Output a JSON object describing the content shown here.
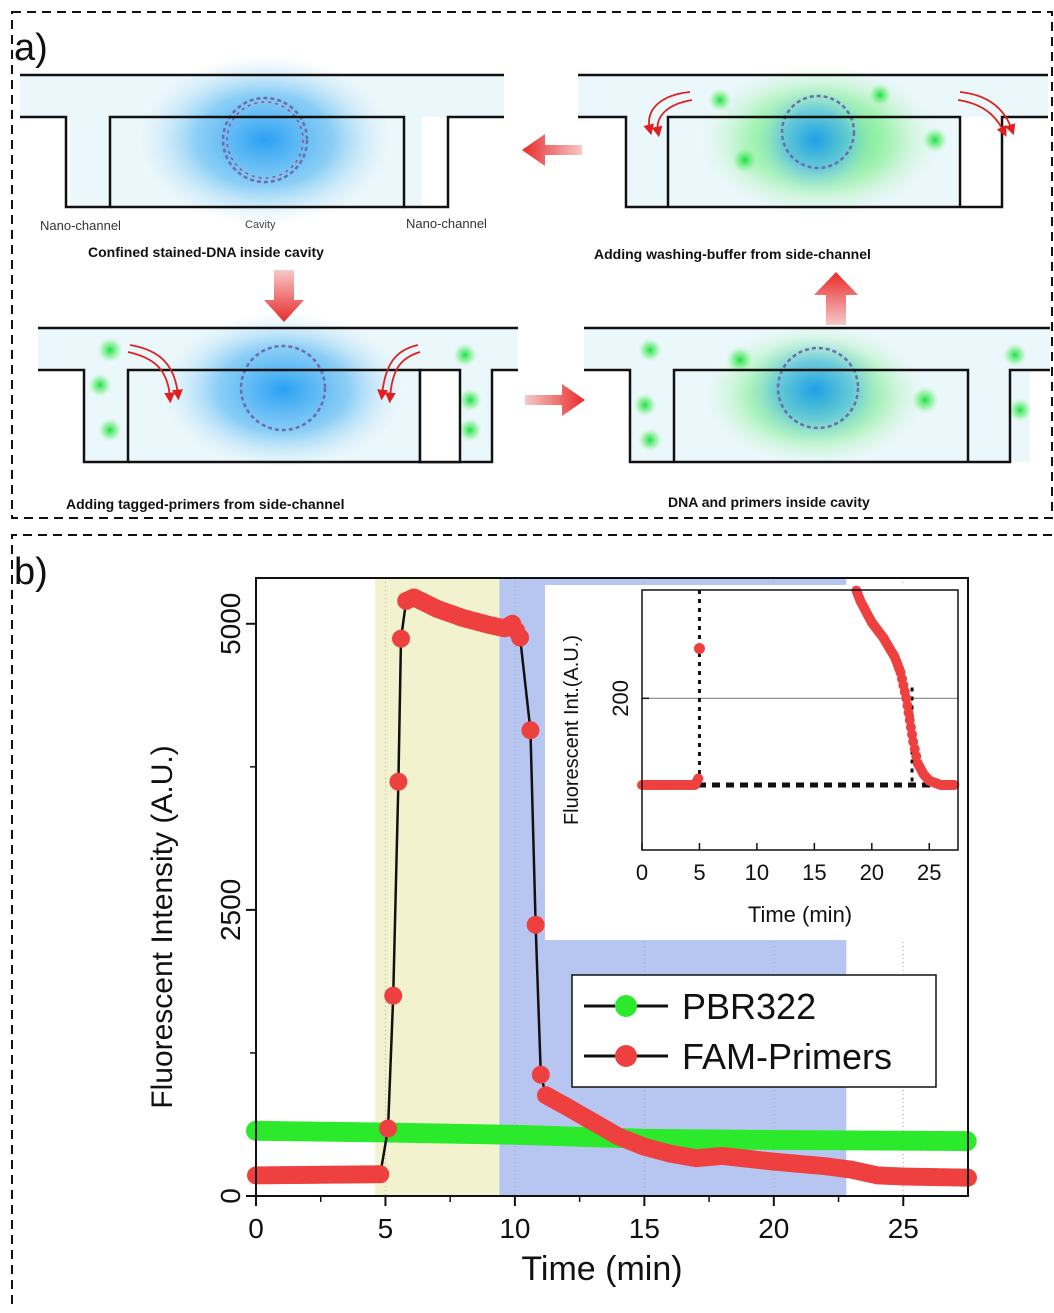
{
  "panel_a": {
    "label": "a)",
    "labels": {
      "nano_left": "Nano-channel",
      "cavity": "Cavity",
      "nano_right": "Nano-channel"
    },
    "captions": {
      "step1": "Confined  stained-DNA inside cavity",
      "step2": "Adding tagged-primers  from side-channel",
      "step3": "DNA and primers inside cavity",
      "step4": "Adding washing-buffer from side-channel"
    },
    "colors": {
      "dna_glow": "#1e9bf0",
      "primer_glow": "#22d64a",
      "arrow": "#e83030",
      "channel_fill": "#eaf7fb"
    }
  },
  "panel_b": {
    "label": "b)",
    "colors": {
      "loading_band": "#f2f2cf",
      "washing_band": "#b7c6f0",
      "pbr322": "#2bea2b",
      "fam": "#ef4040"
    },
    "chart_data": {
      "type": "scatter",
      "xlabel": "Time  (min)",
      "ylabel": "Fluorescent Intensity (A.U.)",
      "xlim": [
        0,
        27.5
      ],
      "ylim": [
        0,
        5400
      ],
      "x_ticks": [
        "0",
        "5",
        "10",
        "15",
        "20",
        "25"
      ],
      "y_ticks": [
        "0",
        "2500",
        "5000"
      ],
      "x_tick_values": [
        0,
        5,
        10,
        15,
        20,
        25
      ],
      "y_tick_values": [
        0,
        2500,
        5000
      ],
      "shaded_regions": [
        {
          "x_start": 4.6,
          "x_end": 9.4,
          "color": "#f2f2cf"
        },
        {
          "x_start": 9.4,
          "x_end": 22.8,
          "color": "#b7c6f0"
        }
      ],
      "legend": {
        "position": "center-right",
        "entries": [
          "PBR322",
          "FAM-Primers"
        ]
      },
      "series": [
        {
          "name": "PBR322",
          "color": "#2bea2b",
          "x": [
            0,
            5,
            10,
            15,
            20,
            27.5
          ],
          "y": [
            570,
            555,
            535,
            500,
            490,
            480
          ]
        },
        {
          "name": "FAM-Primers",
          "color": "#ef4040",
          "x": [
            0,
            4.8,
            5.1,
            5.3,
            5.5,
            5.6,
            5.8,
            6.1,
            7,
            8,
            9,
            9.6,
            9.9,
            10.2,
            10.6,
            10.8,
            11.0,
            11.2,
            12,
            13,
            14,
            15,
            16,
            17,
            18,
            20,
            22,
            23,
            24,
            25,
            27.5
          ],
          "y": [
            180,
            190,
            590,
            1750,
            3620,
            4870,
            5200,
            5230,
            5130,
            5050,
            4990,
            4960,
            5000,
            4880,
            4070,
            2370,
            1060,
            880,
            780,
            650,
            520,
            430,
            370,
            330,
            350,
            300,
            260,
            230,
            180,
            170,
            160
          ]
        }
      ]
    },
    "inset": {
      "xlabel": "Time  (min)",
      "ylabel": "Fluorescent Int.(A.U.)",
      "x_ticks": [
        "0",
        "5",
        "10",
        "15",
        "20",
        "25"
      ],
      "y_ticks": [
        "200"
      ],
      "x_tick_values": [
        0,
        5,
        10,
        15,
        20,
        25
      ],
      "y_tick_values": [
        200
      ],
      "xlim": [
        0,
        27.5
      ],
      "ylim": [
        130,
        250
      ],
      "baseline": 160,
      "marker_x": 5,
      "marker_x2": 23.5,
      "series": [
        {
          "name": "FAM-Primers",
          "color": "#ef4040",
          "x": [
            0,
            1,
            2,
            3,
            4,
            4.6,
            4.9,
            5.0,
            18.2,
            19,
            20,
            21,
            22,
            22.5,
            23,
            23.3,
            23.6,
            24,
            24.5,
            25,
            26,
            27.3
          ],
          "y": [
            160,
            160,
            160,
            160,
            160,
            160,
            163,
            223,
            256,
            245,
            235,
            228,
            219,
            212,
            200,
            190,
            180,
            170,
            165,
            162,
            160,
            160
          ]
        }
      ]
    }
  }
}
